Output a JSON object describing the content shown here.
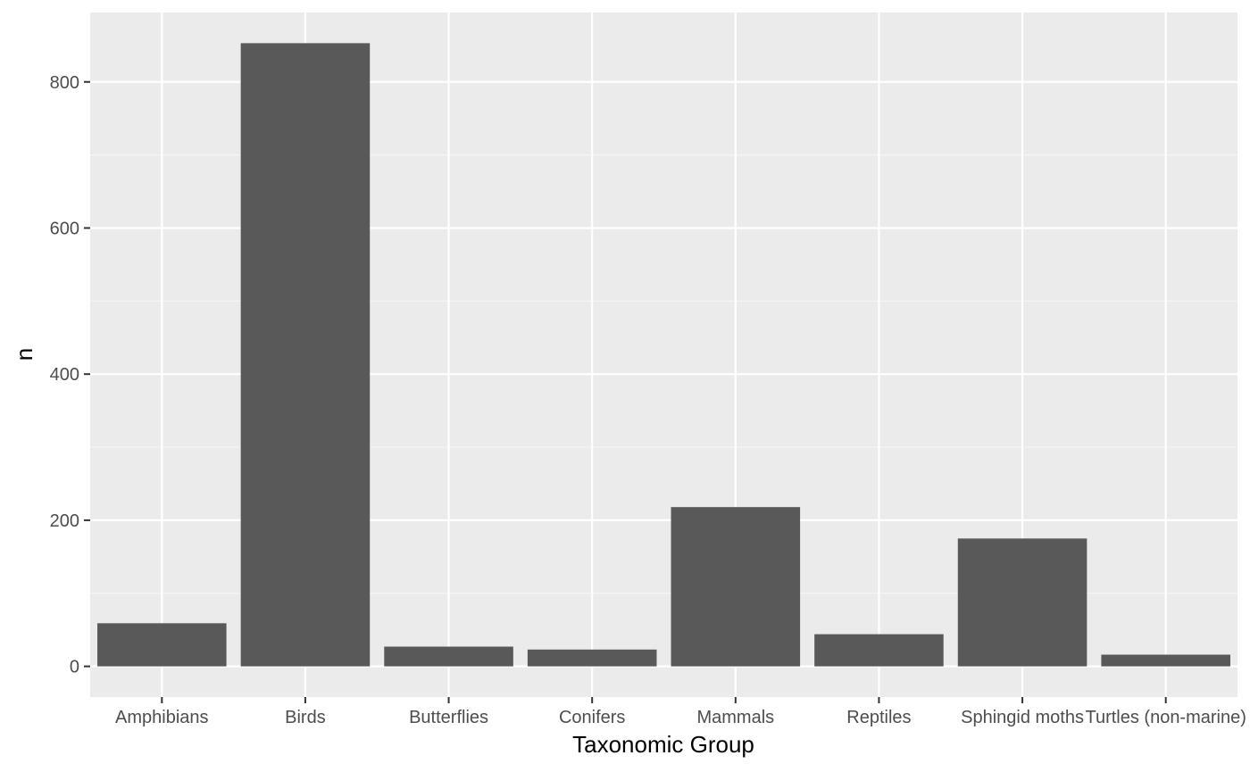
{
  "chart_data": {
    "type": "bar",
    "title": "",
    "xlabel": "Taxonomic Group",
    "ylabel": "n",
    "categories": [
      "Amphibians",
      "Birds",
      "Butterflies",
      "Conifers",
      "Mammals",
      "Reptiles",
      "Sphingid moths",
      "Turtles (non-marine)"
    ],
    "values": [
      59,
      853,
      27,
      23,
      218,
      44,
      175,
      16
    ],
    "ylim": [
      -42,
      895
    ],
    "yticks": [
      0,
      200,
      400,
      600,
      800
    ],
    "ytick_labels": [
      "0",
      "200",
      "400",
      "600",
      "800"
    ],
    "grid": true,
    "legend": "none",
    "colors": {
      "panel_background": "#ebebeb",
      "grid_major": "#ffffff",
      "grid_minor": "#f5f5f5",
      "bar_fill": "#595959",
      "tick_label": "#4d4d4d",
      "axis_title": "#000000",
      "tick_mark": "#333333"
    }
  }
}
